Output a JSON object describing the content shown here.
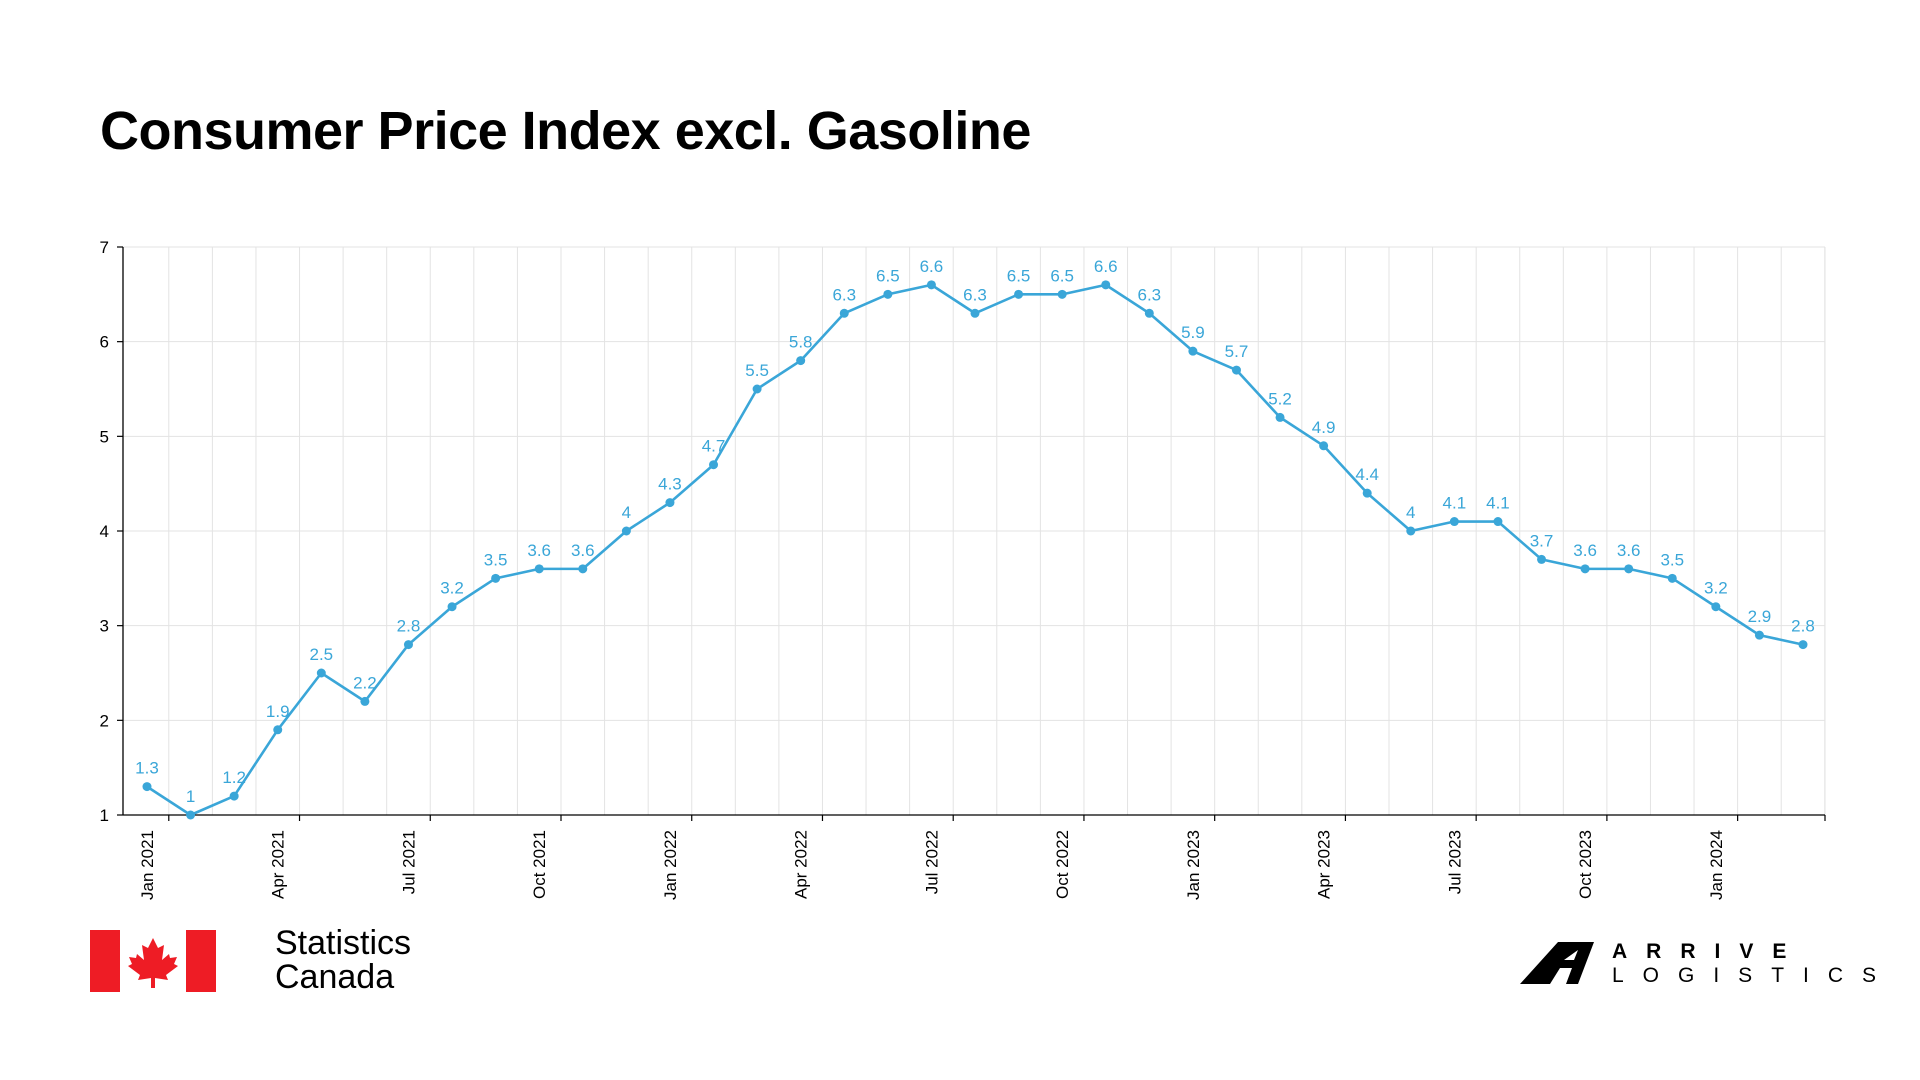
{
  "title": "Consumer Price Index excl. Gasoline",
  "colors": {
    "line": "#3aa6d8",
    "label": "#3aa6d8",
    "grid": "#e3e3e3",
    "axis": "#000000",
    "flag_red": "#ee1c25"
  },
  "brand": {
    "statcan_line1": "Statistics",
    "statcan_line2": "Canada",
    "arrive_line1": "ARRIVE",
    "arrive_line2": "LOGISTICS"
  },
  "chart_data": {
    "type": "line",
    "title": "Consumer Price Index excl. Gasoline",
    "xlabel": "",
    "ylabel": "",
    "ylim": [
      1,
      7
    ],
    "yticks": [
      1,
      2,
      3,
      4,
      5,
      6,
      7
    ],
    "grid": true,
    "x": [
      "2021-01",
      "2021-02",
      "2021-03",
      "2021-04",
      "2021-05",
      "2021-06",
      "2021-07",
      "2021-08",
      "2021-09",
      "2021-10",
      "2021-11",
      "2021-12",
      "2022-01",
      "2022-02",
      "2022-03",
      "2022-04",
      "2022-05",
      "2022-06",
      "2022-07",
      "2022-08",
      "2022-09",
      "2022-10",
      "2022-11",
      "2022-12",
      "2023-01",
      "2023-02",
      "2023-03",
      "2023-04",
      "2023-05",
      "2023-06",
      "2023-07",
      "2023-08",
      "2023-09",
      "2023-10",
      "2023-11",
      "2023-12",
      "2024-01",
      "2024-02",
      "2024-03"
    ],
    "x_tick_labels": [
      {
        "at": "2021-01",
        "label": "Jan 2021"
      },
      {
        "at": "2021-04",
        "label": "Apr 2021"
      },
      {
        "at": "2021-07",
        "label": "Jul 2021"
      },
      {
        "at": "2021-10",
        "label": "Oct 2021"
      },
      {
        "at": "2022-01",
        "label": "Jan 2022"
      },
      {
        "at": "2022-04",
        "label": "Apr 2022"
      },
      {
        "at": "2022-07",
        "label": "Jul 2022"
      },
      {
        "at": "2022-10",
        "label": "Oct 2022"
      },
      {
        "at": "2023-01",
        "label": "Jan 2023"
      },
      {
        "at": "2023-04",
        "label": "Apr 2023"
      },
      {
        "at": "2023-07",
        "label": "Jul 2023"
      },
      {
        "at": "2023-10",
        "label": "Oct 2023"
      },
      {
        "at": "2024-01",
        "label": "Jan 2024"
      }
    ],
    "series": [
      {
        "values": [
          1.3,
          1,
          1.2,
          1.9,
          2.5,
          2.2,
          2.8,
          3.2,
          3.5,
          3.6,
          3.6,
          4,
          4.3,
          4.7,
          5.5,
          5.8,
          6.3,
          6.5,
          6.6,
          6.3,
          6.5,
          6.5,
          6.6,
          6.3,
          5.9,
          5.7,
          5.2,
          4.9,
          4.4,
          4,
          4.1,
          4.1,
          3.7,
          3.6,
          3.6,
          3.5,
          3.2,
          2.9,
          2.8
        ],
        "labels": [
          "1.3",
          "1",
          "1.2",
          "1.9",
          "2.5",
          "2.2",
          "2.8",
          "3.2",
          "3.5",
          "3.6",
          "3.6",
          "4",
          "4.3",
          "4.7",
          "5.5",
          "5.8",
          "6.3",
          "6.5",
          "6.6",
          "6.3",
          "6.5",
          "6.5",
          "6.6",
          "6.3",
          "5.9",
          "5.7",
          "5.2",
          "4.9",
          "4.4",
          "4",
          "4.1",
          "4.1",
          "3.7",
          "3.6",
          "3.6",
          "3.5",
          "3.2",
          "2.9",
          "2.8"
        ]
      }
    ]
  }
}
